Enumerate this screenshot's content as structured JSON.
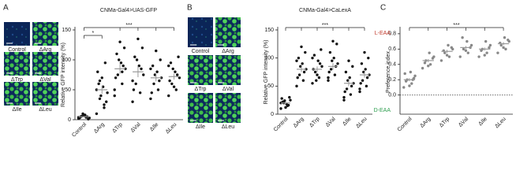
{
  "panels": [
    "A",
    "B",
    "C"
  ],
  "panel_a_images": [
    "Control",
    "ΔArg",
    "ΔTrp",
    "ΔVal",
    "ΔIle",
    "ΔLeu"
  ],
  "panel_b_images": [
    "Control",
    "ΔArg",
    "ΔTrp",
    "ΔVal",
    "ΔIle",
    "ΔLeu"
  ],
  "chart_data": [
    {
      "type": "strip",
      "title": "CNMa-Gal4>UAS-GFP",
      "y_label": "Relative GFP intensity (%)",
      "color": "#111111",
      "categories": [
        "Control",
        "ΔArg",
        "ΔTrp",
        "ΔVal",
        "ΔIle",
        "ΔLeu"
      ],
      "values": [
        [
          2,
          4,
          6,
          3,
          8,
          5,
          1,
          7,
          3,
          5,
          10,
          4
        ],
        [
          10,
          20,
          35,
          45,
          55,
          60,
          30,
          70,
          80,
          95,
          40,
          50,
          25,
          65
        ],
        [
          40,
          60,
          75,
          85,
          95,
          110,
          120,
          130,
          70,
          90,
          100,
          50,
          80
        ],
        [
          30,
          45,
          60,
          75,
          90,
          105,
          120,
          135,
          50,
          85,
          100,
          65
        ],
        [
          35,
          50,
          60,
          70,
          80,
          90,
          100,
          115,
          45,
          65,
          75,
          85
        ],
        [
          40,
          50,
          60,
          70,
          80,
          95,
          105,
          55,
          65,
          75,
          85,
          90
        ]
      ],
      "mean": [
        5,
        50,
        85,
        80,
        70,
        72
      ],
      "sem": [
        1,
        7,
        8,
        9,
        6,
        5
      ],
      "ylim": [
        0,
        150
      ],
      "yticks": [
        0,
        50,
        100,
        150
      ],
      "annotations": [
        {
          "text": "*",
          "categories": [
            0,
            1
          ]
        },
        {
          "text": "***",
          "categories": [
            0,
            2,
            3,
            4,
            5
          ]
        }
      ]
    },
    {
      "type": "strip",
      "title": "CNMa-Gal4>CaLexA",
      "y_label": "Relative GFP intensity (%)",
      "color": "#111111",
      "categories": [
        "Control",
        "ΔArg",
        "ΔTrp",
        "ΔVal",
        "ΔIle",
        "ΔLeu"
      ],
      "values": [
        [
          10,
          15,
          20,
          25,
          18,
          22,
          30,
          12,
          28,
          16,
          24,
          20
        ],
        [
          50,
          60,
          70,
          80,
          90,
          100,
          110,
          120,
          65,
          75,
          85,
          95
        ],
        [
          55,
          65,
          75,
          85,
          95,
          105,
          115,
          70,
          80,
          90,
          60,
          100
        ],
        [
          60,
          70,
          80,
          90,
          100,
          110,
          125,
          130,
          75,
          85,
          95,
          65
        ],
        [
          25,
          35,
          45,
          55,
          65,
          75,
          85,
          95,
          40,
          50,
          60,
          30
        ],
        [
          40,
          50,
          60,
          70,
          80,
          90,
          100,
          110,
          55,
          65,
          75,
          45
        ]
      ],
      "mean": [
        20,
        80,
        80,
        85,
        55,
        70
      ],
      "sem": [
        2,
        5,
        5,
        6,
        5,
        5
      ],
      "ylim": [
        0,
        150
      ],
      "yticks": [
        0,
        50,
        100,
        150
      ],
      "annotations": [
        {
          "text": "***",
          "categories": [
            0,
            1,
            2,
            3,
            4,
            5
          ]
        }
      ]
    },
    {
      "type": "strip",
      "y_label": "Preference index",
      "color": "#888888",
      "top_label": "L-EAA",
      "top_label_color": "#c0392b",
      "bottom_label": "D-EAA",
      "bottom_label_color": "#2e9e4f",
      "categories": [
        "Control",
        "ΔArg",
        "ΔTrp",
        "ΔVal",
        "ΔIle",
        "ΔLeu"
      ],
      "values": [
        [
          0.1,
          0.15,
          0.2,
          0.25,
          0.3,
          0.18,
          0.22,
          0.12,
          0.28,
          0.2
        ],
        [
          0.35,
          0.4,
          0.45,
          0.5,
          0.55,
          0.42,
          0.48,
          0.38
        ],
        [
          0.45,
          0.5,
          0.55,
          0.6,
          0.65,
          0.58,
          0.62,
          0.52
        ],
        [
          0.5,
          0.55,
          0.6,
          0.65,
          0.7,
          0.75,
          0.62,
          0.58
        ],
        [
          0.5,
          0.55,
          0.6,
          0.65,
          0.7,
          0.58,
          0.62,
          0.52
        ],
        [
          0.55,
          0.6,
          0.65,
          0.7,
          0.75,
          0.68,
          0.72,
          0.62
        ]
      ],
      "mean": [
        0.2,
        0.45,
        0.57,
        0.62,
        0.6,
        0.67
      ],
      "sem": [
        0.02,
        0.02,
        0.02,
        0.02,
        0.02,
        0.02
      ],
      "ylim": [
        -0.25,
        0.85
      ],
      "yticks": [
        {
          "value": 0,
          "label": "0.0"
        },
        0.2,
        0.4,
        0.6,
        0.8
      ],
      "reference_line": 0,
      "annotations": [
        {
          "text": "***",
          "categories": [
            0,
            1,
            2,
            3,
            4,
            5
          ]
        }
      ]
    }
  ]
}
